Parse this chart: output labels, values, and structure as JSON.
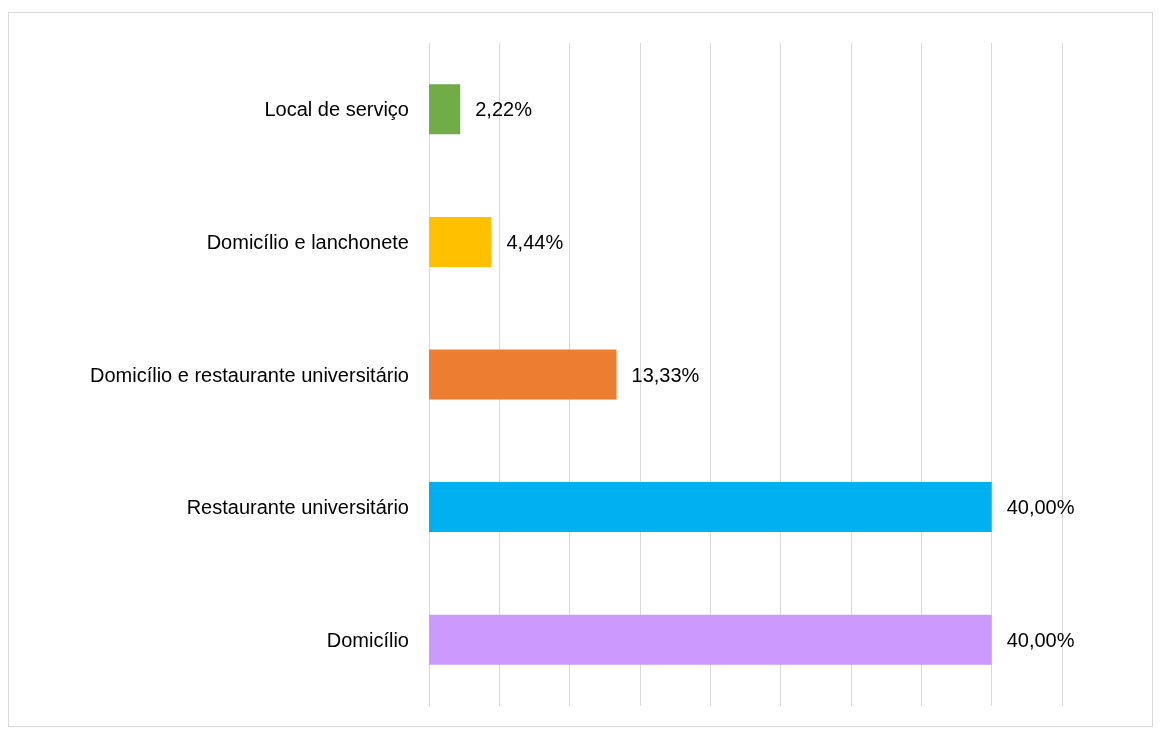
{
  "chart_data": {
    "type": "bar",
    "orientation": "horizontal",
    "categories": [
      "Local de serviço",
      "Domicílio e lanchonete",
      "Domicílio e restaurante universitário",
      "Restaurante universitário",
      "Domicílio"
    ],
    "values": [
      2.22,
      4.44,
      13.33,
      40,
      40
    ],
    "value_labels": [
      "2,22%",
      "4,44%",
      "13,33%",
      "40,00%",
      "40,00%"
    ],
    "colors": [
      "#70ad47",
      "#ffc000",
      "#ed7d31",
      "#00b0f0",
      "#cc99ff"
    ],
    "xlim": [
      0,
      45
    ],
    "xticks": [
      {
        "value": 0,
        "label": null
      },
      {
        "value": 5,
        "label": null
      },
      {
        "value": 10,
        "label": null
      },
      {
        "value": 15,
        "label": null
      },
      {
        "value": 20,
        "label": null
      },
      {
        "value": 25,
        "label": null
      },
      {
        "value": 30,
        "label": null
      },
      {
        "value": 35,
        "label": null
      },
      {
        "value": 40,
        "label": null
      },
      {
        "value": 45,
        "label": null
      }
    ],
    "grid": "x",
    "tick_labels": "y"
  }
}
